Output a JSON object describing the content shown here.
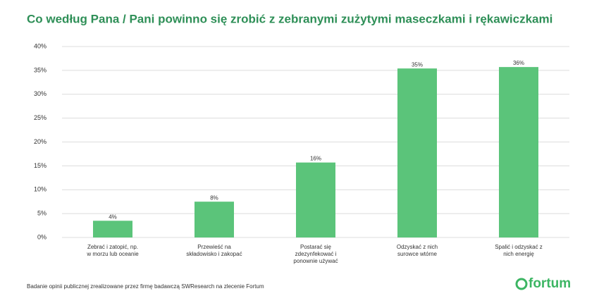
{
  "chart_data": {
    "type": "bar",
    "title": "Co według Pana / Pani powinno się zrobić z zebranymi zużytymi maseczkami i rękawiczkami",
    "categories": [
      "Zebrać i zatopić, np. w morzu lub oceanie",
      "Przewieść na składowisko i zakopać",
      "Postarać się zdezynfekować i ponownie używać",
      "Odzyskać z nich surowce wtórne",
      "Spalić i odzyskać z nich energię"
    ],
    "values": [
      3.5,
      7.5,
      15.7,
      35.4,
      35.7
    ],
    "value_labels": [
      "4%",
      "8%",
      "16%",
      "35%",
      "36%"
    ],
    "color": "#5bc47a",
    "ylim": [
      0,
      40
    ],
    "yticks": [
      {
        "value": 0,
        "label": "0%"
      },
      {
        "value": 5,
        "label": "5%"
      },
      {
        "value": 10,
        "label": "10%"
      },
      {
        "value": 15,
        "label": "15%"
      },
      {
        "value": 20,
        "label": "20%"
      },
      {
        "value": 25,
        "label": "25%"
      },
      {
        "value": 30,
        "label": "30%"
      },
      {
        "value": 35,
        "label": "35%"
      },
      {
        "value": 40,
        "label": "40%"
      }
    ],
    "grid": true,
    "footnote": "Badanie opinii publicznej zrealizowane przez firmę badawczą SWResearch na zlecenie Fortum",
    "brand": "fortum"
  }
}
